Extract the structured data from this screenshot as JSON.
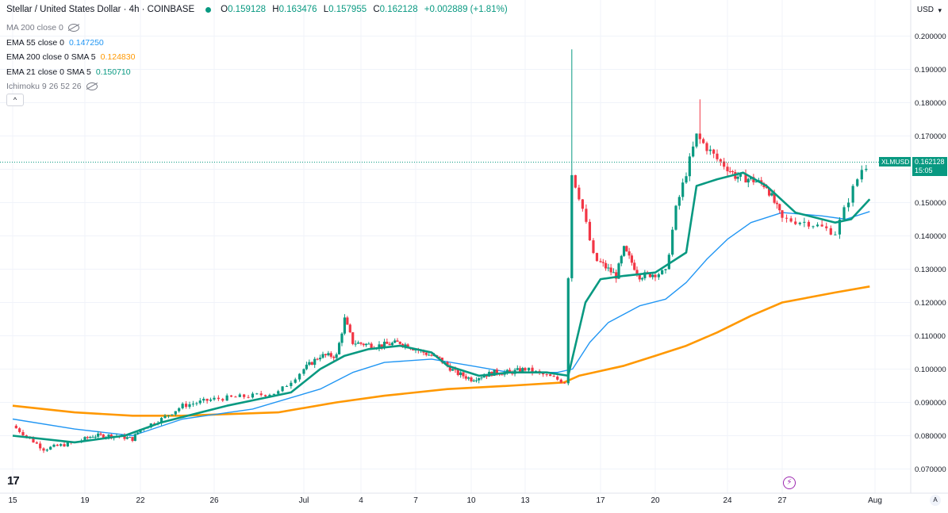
{
  "header": {
    "symbol_title": "Stellar / United States Dollar · 4h · COINBASE",
    "ohlc": [
      {
        "k": "O",
        "v": "0.159128"
      },
      {
        "k": "H",
        "v": "0.163476"
      },
      {
        "k": "L",
        "v": "0.157955"
      },
      {
        "k": "C",
        "v": "0.162128"
      },
      {
        "k": "",
        "v": "+0.002889 (+1.81%)"
      }
    ]
  },
  "indicators": [
    {
      "label": "MA 200 close 0",
      "value": "",
      "color": "#787b86",
      "hidden": true
    },
    {
      "label": "EMA 55 close 0",
      "value": "0.147250",
      "color": "#2196f3",
      "hidden": false
    },
    {
      "label": "EMA 200 close 0 SMA 5",
      "value": "0.124830",
      "color": "#ff9800",
      "hidden": false
    },
    {
      "label": "EMA 21 close 0 SMA 5",
      "value": "0.150710",
      "color": "#089981",
      "hidden": false
    },
    {
      "label": "Ichimoku 9 26 52 26",
      "value": "",
      "color": "#787b86",
      "hidden": true
    }
  ],
  "collapse_label": "^",
  "price_axis": {
    "currency": "USD",
    "ticks": [
      "0.200000",
      "0.190000",
      "0.180000",
      "0.170000",
      "0.160000",
      "0.150000",
      "0.140000",
      "0.130000",
      "0.120000",
      "0.110000",
      "0.100000",
      "0.090000",
      "0.080000",
      "0.070000"
    ]
  },
  "last_price": {
    "symbol": "XLMUSD",
    "price": "0.162128",
    "countdown": "15:05"
  },
  "time_axis": {
    "labels": [
      "15",
      "19",
      "22",
      "26",
      "Jul",
      "4",
      "7",
      "10",
      "13",
      "17",
      "20",
      "24",
      "27",
      "Aug"
    ]
  },
  "logo": "17",
  "chart_data": {
    "type": "candlestick",
    "title": "Stellar / United States Dollar · 4h · COINBASE",
    "ylim": [
      0.064,
      0.206
    ],
    "x_days": [
      "Jun 15",
      "Jun 19",
      "Jun 22",
      "Jun 26",
      "Jul 1",
      "Jul 4",
      "Jul 7",
      "Jul 10",
      "Jul 13",
      "Jul 17",
      "Jul 20",
      "Jul 24",
      "Jul 27",
      "Aug 1"
    ],
    "price_path": [
      [
        0.0,
        0.083
      ],
      [
        1.5,
        0.076
      ],
      [
        3.0,
        0.078
      ],
      [
        4.0,
        0.08
      ],
      [
        5.5,
        0.08
      ],
      [
        6.5,
        0.079
      ],
      [
        7.0,
        0.082
      ],
      [
        8.0,
        0.085
      ],
      [
        9.0,
        0.089
      ],
      [
        10.5,
        0.091
      ],
      [
        12.0,
        0.092
      ],
      [
        13.0,
        0.093
      ],
      [
        14.0,
        0.1
      ],
      [
        15.0,
        0.104
      ],
      [
        16.0,
        0.104
      ],
      [
        16.5,
        0.115
      ],
      [
        17.0,
        0.108
      ],
      [
        18.5,
        0.107
      ],
      [
        20.0,
        0.108
      ],
      [
        21.0,
        0.106
      ],
      [
        22.5,
        0.103
      ],
      [
        23.5,
        0.099
      ],
      [
        24.5,
        0.097
      ],
      [
        26.0,
        0.099
      ],
      [
        27.0,
        0.099
      ],
      [
        28.0,
        0.1
      ],
      [
        29.0,
        0.098
      ],
      [
        29.9,
        0.096
      ],
      [
        30.1,
        0.16
      ],
      [
        30.6,
        0.15
      ],
      [
        31.2,
        0.133
      ],
      [
        32.5,
        0.128
      ],
      [
        33.0,
        0.136
      ],
      [
        34.0,
        0.128
      ],
      [
        35.5,
        0.129
      ],
      [
        36.0,
        0.148
      ],
      [
        37.0,
        0.17
      ],
      [
        38.0,
        0.163
      ],
      [
        39.0,
        0.158
      ],
      [
        40.0,
        0.157
      ],
      [
        41.0,
        0.155
      ],
      [
        42.0,
        0.145
      ],
      [
        43.0,
        0.144
      ],
      [
        44.0,
        0.141
      ],
      [
        44.6,
        0.153
      ],
      [
        45.0,
        0.16
      ],
      [
        45.3,
        0.162
      ]
    ],
    "ema21_path": [
      [
        0.0,
        0.08
      ],
      [
        3.0,
        0.078
      ],
      [
        6.0,
        0.08
      ],
      [
        8.0,
        0.084
      ],
      [
        11.0,
        0.089
      ],
      [
        13.5,
        0.093
      ],
      [
        15.0,
        0.1
      ],
      [
        16.5,
        0.104
      ],
      [
        18.0,
        0.106
      ],
      [
        20.0,
        0.107
      ],
      [
        22.0,
        0.105
      ],
      [
        23.0,
        0.101
      ],
      [
        25.0,
        0.098
      ],
      [
        27.0,
        0.099
      ],
      [
        29.0,
        0.099
      ],
      [
        30.0,
        0.098
      ],
      [
        30.8,
        0.12
      ],
      [
        31.5,
        0.127
      ],
      [
        33.0,
        0.128
      ],
      [
        35.0,
        0.129
      ],
      [
        36.5,
        0.135
      ],
      [
        37.0,
        0.155
      ],
      [
        38.0,
        0.157
      ],
      [
        39.5,
        0.159
      ],
      [
        41.0,
        0.155
      ],
      [
        42.5,
        0.147
      ],
      [
        44.0,
        0.144
      ],
      [
        44.6,
        0.145
      ],
      [
        45.3,
        0.151
      ]
    ],
    "ema55_path": [
      [
        0.0,
        0.085
      ],
      [
        3.0,
        0.082
      ],
      [
        6.5,
        0.08
      ],
      [
        9.0,
        0.085
      ],
      [
        12.0,
        0.088
      ],
      [
        15.0,
        0.094
      ],
      [
        17.0,
        0.099
      ],
      [
        19.0,
        0.102
      ],
      [
        22.0,
        0.103
      ],
      [
        24.5,
        0.101
      ],
      [
        27.0,
        0.099
      ],
      [
        29.5,
        0.099
      ],
      [
        30.2,
        0.1
      ],
      [
        31.0,
        0.108
      ],
      [
        32.0,
        0.114
      ],
      [
        34.0,
        0.119
      ],
      [
        35.5,
        0.121
      ],
      [
        36.5,
        0.126
      ],
      [
        37.5,
        0.133
      ],
      [
        38.5,
        0.139
      ],
      [
        40.0,
        0.144
      ],
      [
        42.0,
        0.147
      ],
      [
        43.5,
        0.146
      ],
      [
        44.4,
        0.145
      ],
      [
        45.3,
        0.1473
      ]
    ],
    "ema200_path": [
      [
        0.0,
        0.089
      ],
      [
        3.0,
        0.087
      ],
      [
        6.5,
        0.086
      ],
      [
        9.0,
        0.086
      ],
      [
        13.0,
        0.087
      ],
      [
        16.0,
        0.09
      ],
      [
        19.0,
        0.092
      ],
      [
        23.0,
        0.094
      ],
      [
        27.0,
        0.095
      ],
      [
        29.8,
        0.096
      ],
      [
        30.5,
        0.098
      ],
      [
        33.0,
        0.101
      ],
      [
        35.0,
        0.104
      ],
      [
        36.5,
        0.107
      ],
      [
        38.0,
        0.111
      ],
      [
        40.0,
        0.116
      ],
      [
        42.0,
        0.12
      ],
      [
        44.0,
        0.123
      ],
      [
        45.3,
        0.1248
      ]
    ]
  }
}
